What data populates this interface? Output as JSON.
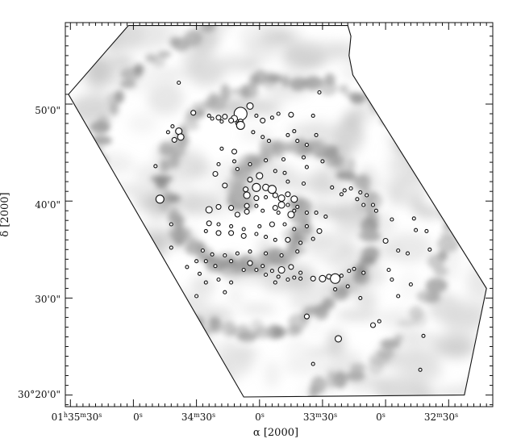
{
  "chart_data": {
    "type": "scatter",
    "title": "",
    "xlabel": "α [2000]",
    "ylabel": "δ [2000]",
    "x_ticks": [
      {
        "label": "01h35m30s",
        "value": 0
      },
      {
        "label": "0s",
        "value": 1
      },
      {
        "label": "34m30s",
        "value": 2
      },
      {
        "label": "0s",
        "value": 3
      },
      {
        "label": "33m30s",
        "value": 4
      },
      {
        "label": "0s",
        "value": 5
      },
      {
        "label": "32m30s",
        "value": 6
      }
    ],
    "y_ticks": [
      {
        "label": "30°20'0\"",
        "value": 20
      },
      {
        "label": "30'0\"",
        "value": 30
      },
      {
        "label": "40'0\"",
        "value": 40
      },
      {
        "label": "50'0\"",
        "value": 50
      }
    ],
    "xlim": [
      -0.08,
      6.7
    ],
    "ylim": [
      18.8,
      58.4
    ],
    "grid": false,
    "background": "greyscale emission map (inverted)",
    "survey_outline": [
      [
        0.92,
        58.1
      ],
      [
        4.4,
        58.1
      ],
      [
        4.45,
        57.0
      ],
      [
        4.42,
        55.0
      ],
      [
        4.48,
        53.0
      ],
      [
        6.6,
        31.0
      ],
      [
        6.25,
        20.0
      ],
      [
        2.75,
        19.8
      ],
      [
        -0.03,
        51.0
      ]
    ],
    "sources": [
      [
        2.7,
        49.0,
        8
      ],
      [
        2.45,
        48.7,
        3
      ],
      [
        2.6,
        48.5,
        4
      ],
      [
        2.85,
        49.8,
        4
      ],
      [
        2.35,
        48.6,
        3
      ],
      [
        2.25,
        48.5,
        2
      ],
      [
        2.7,
        48.2,
        3
      ],
      [
        1.95,
        49.1,
        3
      ],
      [
        2.2,
        48.8,
        2
      ],
      [
        2.55,
        48.3,
        3
      ],
      [
        2.65,
        48.0,
        2
      ],
      [
        2.4,
        48.2,
        2
      ],
      [
        2.95,
        48.8,
        2
      ],
      [
        3.3,
        49.0,
        2
      ],
      [
        3.2,
        48.6,
        2
      ],
      [
        3.05,
        48.3,
        3
      ],
      [
        3.45,
        46.8,
        2
      ],
      [
        3.6,
        46.2,
        2
      ],
      [
        3.05,
        46.6,
        2
      ],
      [
        3.15,
        46.2,
        2
      ],
      [
        1.72,
        47.2,
        4
      ],
      [
        1.62,
        47.7,
        2
      ],
      [
        1.55,
        47.1,
        2
      ],
      [
        1.75,
        46.6,
        4
      ],
      [
        1.65,
        46.3,
        3
      ],
      [
        1.42,
        40.2,
        5
      ],
      [
        1.6,
        37.6,
        2
      ],
      [
        1.6,
        35.2,
        2
      ],
      [
        1.35,
        43.6,
        2
      ],
      [
        3.38,
        44.3,
        2
      ],
      [
        1.72,
        52.2,
        2
      ],
      [
        3.95,
        51.2,
        2
      ],
      [
        3.85,
        48.8,
        2
      ],
      [
        3.9,
        46.8,
        2
      ],
      [
        3.75,
        45.8,
        2
      ],
      [
        3.7,
        44.5,
        2
      ],
      [
        3.75,
        43.5,
        2
      ],
      [
        4.0,
        44.1,
        2
      ],
      [
        4.15,
        41.4,
        2
      ],
      [
        4.3,
        40.7,
        2
      ],
      [
        4.35,
        41.1,
        2
      ],
      [
        4.45,
        41.3,
        2
      ],
      [
        4.6,
        40.9,
        2
      ],
      [
        4.7,
        40.6,
        2
      ],
      [
        4.55,
        40.2,
        2
      ],
      [
        4.65,
        39.6,
        2
      ],
      [
        4.8,
        39.6,
        2
      ],
      [
        4.85,
        39.0,
        2
      ],
      [
        5.0,
        35.9,
        3
      ],
      [
        5.2,
        34.9,
        2
      ],
      [
        5.05,
        32.9,
        2
      ],
      [
        5.1,
        31.9,
        2
      ],
      [
        5.35,
        34.6,
        2
      ],
      [
        5.1,
        38.1,
        2
      ],
      [
        5.45,
        38.2,
        2
      ],
      [
        5.48,
        37.0,
        2
      ],
      [
        5.65,
        36.9,
        2
      ],
      [
        5.7,
        35.0,
        2
      ],
      [
        5.4,
        31.4,
        2
      ],
      [
        5.2,
        30.2,
        2
      ],
      [
        5.6,
        26.1,
        2
      ],
      [
        5.55,
        22.6,
        2
      ],
      [
        3.5,
        48.9,
        3
      ],
      [
        3.55,
        47.2,
        2
      ],
      [
        2.4,
        45.4,
        2
      ],
      [
        2.6,
        44.1,
        2
      ],
      [
        2.85,
        43.8,
        2
      ],
      [
        3.0,
        42.6,
        4
      ],
      [
        2.3,
        42.8,
        3
      ],
      [
        2.45,
        41.6,
        3
      ],
      [
        2.85,
        42.2,
        3
      ],
      [
        2.95,
        41.4,
        5
      ],
      [
        3.1,
        41.4,
        4
      ],
      [
        3.2,
        41.2,
        5
      ],
      [
        2.78,
        41.2,
        3
      ],
      [
        2.8,
        40.6,
        4
      ],
      [
        2.95,
        40.3,
        3
      ],
      [
        3.1,
        40.4,
        2
      ],
      [
        3.25,
        40.6,
        3
      ],
      [
        3.35,
        40.3,
        4
      ],
      [
        3.45,
        40.7,
        3
      ],
      [
        3.55,
        40.2,
        4
      ],
      [
        3.6,
        39.4,
        2
      ],
      [
        3.45,
        39.6,
        2
      ],
      [
        3.55,
        39.0,
        2
      ],
      [
        3.35,
        39.6,
        4
      ],
      [
        3.25,
        39.3,
        3
      ],
      [
        2.95,
        39.5,
        2
      ],
      [
        2.8,
        39.5,
        3
      ],
      [
        2.55,
        39.3,
        3
      ],
      [
        2.35,
        39.4,
        3
      ],
      [
        2.2,
        39.1,
        4
      ],
      [
        2.8,
        38.9,
        3
      ],
      [
        3.05,
        39.0,
        2
      ],
      [
        3.3,
        38.8,
        2
      ],
      [
        3.5,
        38.6,
        4
      ],
      [
        3.75,
        38.8,
        2
      ],
      [
        3.9,
        38.8,
        2
      ],
      [
        4.05,
        38.4,
        2
      ],
      [
        3.75,
        37.4,
        2
      ],
      [
        3.55,
        37.1,
        2
      ],
      [
        3.4,
        37.6,
        2
      ],
      [
        3.2,
        37.6,
        3
      ],
      [
        3.0,
        37.4,
        2
      ],
      [
        2.75,
        37.1,
        2
      ],
      [
        2.55,
        37.4,
        2
      ],
      [
        2.35,
        37.6,
        2
      ],
      [
        2.2,
        37.7,
        3
      ],
      [
        2.15,
        36.9,
        2
      ],
      [
        2.35,
        36.7,
        3
      ],
      [
        2.55,
        36.7,
        3
      ],
      [
        2.75,
        36.4,
        3
      ],
      [
        2.95,
        36.6,
        2
      ],
      [
        3.1,
        36.3,
        2
      ],
      [
        3.25,
        36.0,
        2
      ],
      [
        3.45,
        36.0,
        3
      ],
      [
        3.65,
        35.7,
        2
      ],
      [
        3.85,
        36.1,
        2
      ],
      [
        3.95,
        36.9,
        3
      ],
      [
        3.6,
        34.8,
        2
      ],
      [
        3.35,
        34.4,
        2
      ],
      [
        3.1,
        34.6,
        2
      ],
      [
        2.85,
        34.8,
        2
      ],
      [
        2.65,
        34.6,
        2
      ],
      [
        2.45,
        34.4,
        2
      ],
      [
        2.25,
        34.5,
        2
      ],
      [
        2.1,
        34.9,
        2
      ],
      [
        2.15,
        33.8,
        2
      ],
      [
        2.3,
        33.3,
        2
      ],
      [
        2.55,
        33.8,
        2
      ],
      [
        2.85,
        33.6,
        3
      ],
      [
        3.05,
        33.3,
        2
      ],
      [
        3.2,
        32.8,
        2
      ],
      [
        3.35,
        32.9,
        4
      ],
      [
        3.5,
        33.2,
        3
      ],
      [
        3.65,
        32.6,
        2
      ],
      [
        3.3,
        32.2,
        2
      ],
      [
        3.1,
        32.4,
        2
      ],
      [
        2.95,
        32.9,
        2
      ],
      [
        2.75,
        32.9,
        2
      ],
      [
        2.55,
        31.6,
        2
      ],
      [
        2.35,
        31.9,
        2
      ],
      [
        2.15,
        31.6,
        2
      ],
      [
        2.05,
        32.5,
        2
      ],
      [
        2.0,
        33.8,
        2
      ],
      [
        1.85,
        33.2,
        2
      ],
      [
        2.0,
        30.2,
        2
      ],
      [
        3.25,
        31.6,
        2
      ],
      [
        3.45,
        31.9,
        2
      ],
      [
        3.65,
        32.0,
        2
      ],
      [
        3.85,
        32.0,
        3
      ],
      [
        4.0,
        32.0,
        4
      ],
      [
        4.1,
        32.2,
        3
      ],
      [
        4.2,
        32.0,
        6
      ],
      [
        4.3,
        32.3,
        2
      ],
      [
        4.42,
        32.8,
        2
      ],
      [
        4.5,
        33.0,
        2
      ],
      [
        4.65,
        32.6,
        2
      ],
      [
        4.4,
        31.2,
        2
      ],
      [
        4.6,
        30.0,
        2
      ],
      [
        4.2,
        30.9,
        2
      ],
      [
        3.75,
        28.1,
        3
      ],
      [
        4.8,
        27.2,
        3
      ],
      [
        4.9,
        27.6,
        2
      ],
      [
        4.25,
        25.8,
        4
      ],
      [
        3.85,
        23.2,
        2
      ],
      [
        3.55,
        32.1,
        2
      ],
      [
        2.45,
        30.6,
        2
      ],
      [
        2.65,
        43.3,
        2
      ],
      [
        3.1,
        44.2,
        2
      ],
      [
        3.25,
        43.1,
        2
      ],
      [
        3.4,
        42.9,
        2
      ],
      [
        2.7,
        47.8,
        5
      ],
      [
        2.9,
        47.1,
        2
      ],
      [
        3.45,
        42.0,
        2
      ],
      [
        2.65,
        38.6,
        3
      ],
      [
        2.35,
        43.8,
        2
      ],
      [
        2.6,
        45.1,
        3
      ],
      [
        3.7,
        41.8,
        2
      ]
    ]
  }
}
